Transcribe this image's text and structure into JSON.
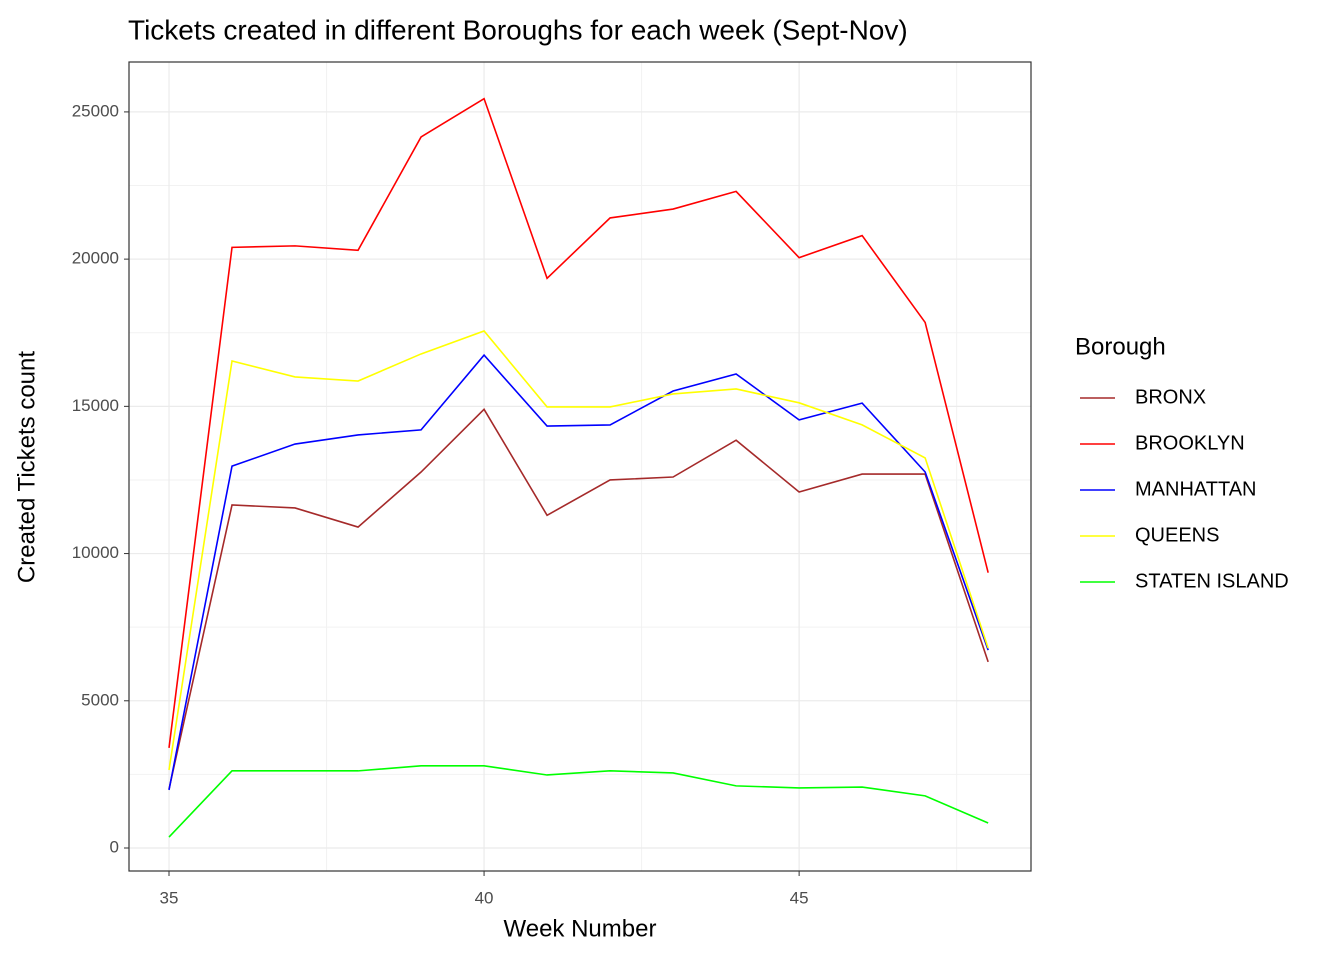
{
  "chart_data": {
    "type": "line",
    "title": "Tickets created in different Boroughs for each week (Sept-Nov)",
    "x_label": "Week Number",
    "y_label": "Created Tickets count",
    "legend_title": "Borough",
    "legend": "right",
    "x": [
      35,
      36,
      37,
      38,
      39,
      40,
      41,
      42,
      43,
      44,
      45,
      46,
      47,
      48
    ],
    "series": [
      {
        "name": "BRONX",
        "color": "#a52a2a",
        "values": [
          2000,
          11650,
          11550,
          10900,
          12770,
          14900,
          11300,
          12500,
          12600,
          13850,
          12090,
          12700,
          12700,
          6320
        ]
      },
      {
        "name": "BROOKLYN",
        "color": "#ff0000",
        "values": [
          3400,
          20400,
          20450,
          20300,
          24150,
          25450,
          19350,
          21400,
          21700,
          22300,
          20050,
          20800,
          17850,
          9350
        ]
      },
      {
        "name": "MANHATTAN",
        "color": "#0000ff",
        "values": [
          1970,
          12970,
          13720,
          14030,
          14200,
          16740,
          14330,
          14370,
          15520,
          16100,
          14540,
          15110,
          12770,
          6720
        ]
      },
      {
        "name": "QUEENS",
        "color": "#ffff00",
        "values": [
          2650,
          16540,
          16000,
          15860,
          16780,
          17560,
          14980,
          14980,
          15420,
          15590,
          15120,
          14370,
          13250,
          6790
        ]
      },
      {
        "name": "STATEN ISLAND",
        "color": "#00ff00",
        "values": [
          370,
          2620,
          2620,
          2620,
          2790,
          2790,
          2480,
          2620,
          2550,
          2110,
          2040,
          2070,
          1770,
          850
        ]
      }
    ],
    "xlim": [
      34.365,
      48.68
    ],
    "xticks": [
      35,
      40,
      45
    ],
    "ylim": [
      -781,
      26695
    ],
    "yticks": [
      0,
      5000,
      10000,
      15000,
      20000,
      25000
    ],
    "grid": true,
    "minor_grid": true
  }
}
